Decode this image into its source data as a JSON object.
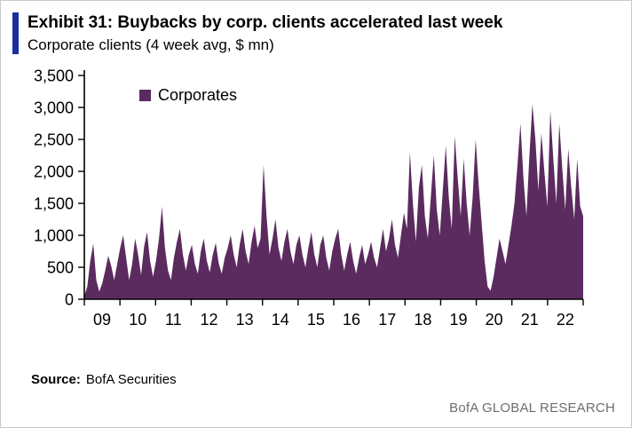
{
  "header": {
    "title": "Exhibit 31: Buybacks by corp. clients accelerated last week",
    "subtitle": "Corporate clients (4 week avg, $ mn)"
  },
  "legend": {
    "label": "Corporates"
  },
  "footer": {
    "source_label": "Source:",
    "source_value": "BofA Securities",
    "brand": "BofA GLOBAL RESEARCH"
  },
  "colors": {
    "accent_bar": "#1a2f9e",
    "series_fill": "#5b2b5f",
    "axis": "#000000",
    "brand_text": "#6d6e71"
  },
  "chart_data": {
    "type": "area",
    "title": "Exhibit 31: Buybacks by corp. clients accelerated last week",
    "subtitle": "Corporate clients (4 week avg, $ mn)",
    "unit": "$ mn",
    "x_labels": [
      "09",
      "10",
      "11",
      "12",
      "13",
      "14",
      "15",
      "16",
      "17",
      "18",
      "19",
      "20",
      "21",
      "22"
    ],
    "points_per_year": 12,
    "ylim": [
      0,
      3500
    ],
    "yticks": [
      0,
      500,
      1000,
      1500,
      2000,
      2500,
      3000,
      3500
    ],
    "grid": false,
    "legend_position": "top-left",
    "series": [
      {
        "name": "Corporates",
        "color": "#5b2b5f",
        "values": [
          50,
          200,
          600,
          870,
          300,
          120,
          250,
          450,
          680,
          520,
          300,
          550,
          800,
          1000,
          650,
          300,
          550,
          950,
          700,
          380,
          820,
          1050,
          600,
          350,
          600,
          950,
          1450,
          800,
          450,
          300,
          650,
          900,
          1100,
          700,
          450,
          700,
          850,
          550,
          400,
          750,
          950,
          600,
          420,
          700,
          880,
          560,
          400,
          650,
          800,
          1000,
          700,
          500,
          850,
          1100,
          750,
          550,
          900,
          1150,
          800,
          950,
          2100,
          1300,
          700,
          950,
          1250,
          800,
          600,
          900,
          1100,
          750,
          550,
          850,
          1000,
          700,
          500,
          800,
          1050,
          700,
          500,
          850,
          1000,
          650,
          450,
          750,
          950,
          1100,
          700,
          450,
          700,
          900,
          600,
          400,
          650,
          850,
          550,
          700,
          900,
          650,
          500,
          800,
          1100,
          750,
          950,
          1250,
          850,
          650,
          1000,
          1350,
          1100,
          2300,
          1500,
          900,
          1750,
          2100,
          1300,
          950,
          1600,
          2250,
          1400,
          1000,
          1700,
          2400,
          1600,
          1100,
          2550,
          1900,
          1300,
          2200,
          1500,
          1000,
          1600,
          2500,
          1800,
          1200,
          600,
          200,
          130,
          350,
          650,
          950,
          750,
          550,
          850,
          1150,
          1500,
          2100,
          2750,
          1900,
          1300,
          2250,
          3050,
          2500,
          1700,
          2600,
          2000,
          1450,
          2950,
          2200,
          1500,
          2750,
          2050,
          1400,
          2350,
          1750,
          1250,
          2200,
          1450,
          1300
        ]
      }
    ]
  }
}
